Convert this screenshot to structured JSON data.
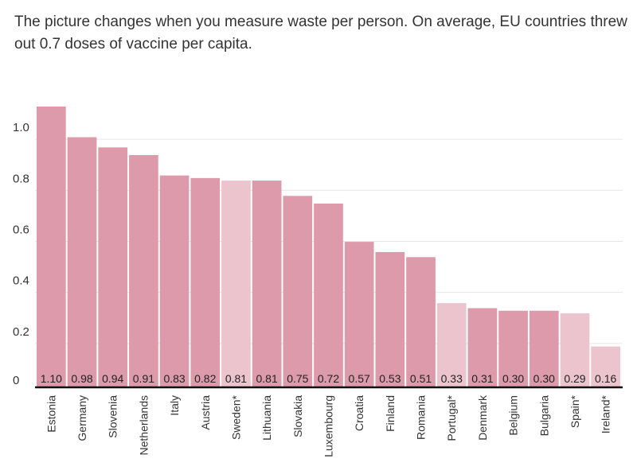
{
  "chart_data": {
    "type": "bar",
    "title": "",
    "subtitle": "The picture changes when you measure waste per person. On average, EU countries threw out 0.7 doses of vaccine per capita.",
    "xlabel": "",
    "ylabel": "",
    "ylim": [
      0,
      1.1
    ],
    "yticks": [
      {
        "value": 0,
        "label": "0"
      },
      {
        "value": 0.2,
        "label": "0.2"
      },
      {
        "value": 0.4,
        "label": "0.4"
      },
      {
        "value": 0.6,
        "label": "0.6"
      },
      {
        "value": 0.8,
        "label": "0.8"
      },
      {
        "value": 1.0,
        "label": "1.0"
      }
    ],
    "grid": true,
    "categories": [
      "Estonia",
      "Germany",
      "Slovenia",
      "Netherlands",
      "Italy",
      "Austria",
      "Sweden*",
      "Lithuania",
      "Slovakia",
      "Luxembourg",
      "Croatia",
      "Finland",
      "Romania",
      "Portugal*",
      "Denmark",
      "Belgium",
      "Bulgaria",
      "Spain*",
      "Ireland*"
    ],
    "values": [
      1.1,
      0.98,
      0.94,
      0.91,
      0.83,
      0.82,
      0.81,
      0.81,
      0.75,
      0.72,
      0.57,
      0.53,
      0.51,
      0.33,
      0.31,
      0.3,
      0.3,
      0.29,
      0.16
    ],
    "value_labels": [
      "1.10",
      "0.98",
      "0.94",
      "0.91",
      "0.83",
      "0.82",
      "0.81",
      "0.81",
      "0.75",
      "0.72",
      "0.57",
      "0.53",
      "0.51",
      "0.33",
      "0.31",
      "0.30",
      "0.30",
      "0.29",
      "0.16"
    ],
    "highlight": [
      false,
      false,
      false,
      false,
      false,
      false,
      true,
      false,
      false,
      false,
      false,
      false,
      false,
      true,
      false,
      false,
      false,
      true,
      true
    ],
    "colors": {
      "bar": "#dd9aaa",
      "bar_light": "#ecc4ce",
      "grid": "#e6e6e6",
      "axis": "#111111"
    }
  }
}
